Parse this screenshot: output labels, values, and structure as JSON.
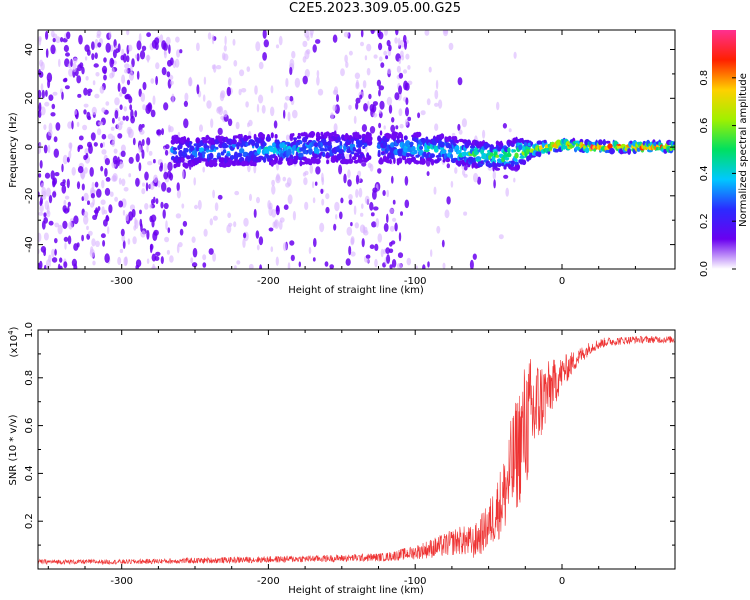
{
  "title": "C2E5.2023.309.05.00.G25",
  "colors": {
    "spectrogram_background": "#ffffff",
    "speckle": "#6a00f0",
    "speckle_light": "#d8b4ff",
    "snr_line": "#ee3333",
    "frame": "#000000"
  },
  "chart_data": [
    {
      "type": "heatmap",
      "xlabel": "Height of straight line (km)",
      "ylabel": "Frequency (Hz)",
      "xlim": [
        -357,
        77
      ],
      "ylim": [
        -50,
        48
      ],
      "x_ticks": [
        -300,
        -200,
        -100,
        0
      ],
      "y_ticks": [
        -40,
        -20,
        0,
        20,
        40
      ],
      "colorbar": {
        "label": "Normalized spectral amplitude",
        "range": [
          0,
          1
        ],
        "ticks": [
          0.0,
          0.2,
          0.4,
          0.6,
          0.8
        ],
        "colormap": [
          "#ffffff",
          "#6a00f0",
          "#2b2bff",
          "#00c8ff",
          "#00e060",
          "#a0f000",
          "#ffd000",
          "#ff2000",
          "#ff3090"
        ]
      },
      "signal_band": {
        "center_hz": [
          [
            -265,
            -2
          ],
          [
            -200,
            -1
          ],
          [
            -130,
            0
          ],
          [
            -80,
            -1
          ],
          [
            -60,
            -3
          ],
          [
            -40,
            -4
          ],
          [
            -20,
            -1
          ],
          [
            0,
            1
          ],
          [
            20,
            0
          ],
          [
            77,
            0
          ]
        ],
        "half_width_hz": [
          [
            -265,
            6
          ],
          [
            -130,
            6
          ],
          [
            -100,
            6
          ],
          [
            -60,
            5
          ],
          [
            -30,
            6
          ],
          [
            -20,
            3
          ],
          [
            0,
            2
          ],
          [
            77,
            2
          ]
        ],
        "peak_amplitude": [
          [
            -265,
            0.35
          ],
          [
            -200,
            0.45
          ],
          [
            -130,
            0.3
          ],
          [
            -100,
            0.45
          ],
          [
            -60,
            0.55
          ],
          [
            -30,
            0.6
          ],
          [
            -10,
            0.85
          ],
          [
            10,
            0.95
          ],
          [
            77,
            0.92
          ]
        ]
      }
    },
    {
      "type": "line",
      "xlabel": "Height of straight line (km)",
      "ylabel": "SNR (10 * v/v)",
      "y_scale_label": "(x10",
      "y_scale_exponent": "4",
      "xlim": [
        -357,
        77
      ],
      "ylim": [
        0,
        1.0
      ],
      "x_ticks": [
        -300,
        -200,
        -100,
        0
      ],
      "y_ticks": [
        0.2,
        0.4,
        0.6,
        0.8,
        1.0
      ],
      "series": [
        {
          "color": "#ee3333",
          "envelope_x": [
            -357,
            -300,
            -250,
            -200,
            -150,
            -120,
            -100,
            -80,
            -70,
            -60,
            -50,
            -40,
            -35,
            -30,
            -25,
            -20,
            -15,
            -10,
            -5,
            0,
            10,
            20,
            30,
            50,
            77
          ],
          "envelope_y": [
            0.03,
            0.03,
            0.035,
            0.04,
            0.045,
            0.05,
            0.07,
            0.1,
            0.12,
            0.11,
            0.18,
            0.3,
            0.4,
            0.5,
            0.6,
            0.65,
            0.7,
            0.74,
            0.78,
            0.82,
            0.88,
            0.93,
            0.95,
            0.96,
            0.96
          ],
          "noise_amplitude_y": [
            0.01,
            0.01,
            0.012,
            0.014,
            0.015,
            0.018,
            0.03,
            0.05,
            0.06,
            0.07,
            0.1,
            0.16,
            0.22,
            0.25,
            0.28,
            0.25,
            0.18,
            0.13,
            0.1,
            0.07,
            0.04,
            0.025,
            0.02,
            0.015,
            0.015
          ]
        }
      ]
    }
  ]
}
